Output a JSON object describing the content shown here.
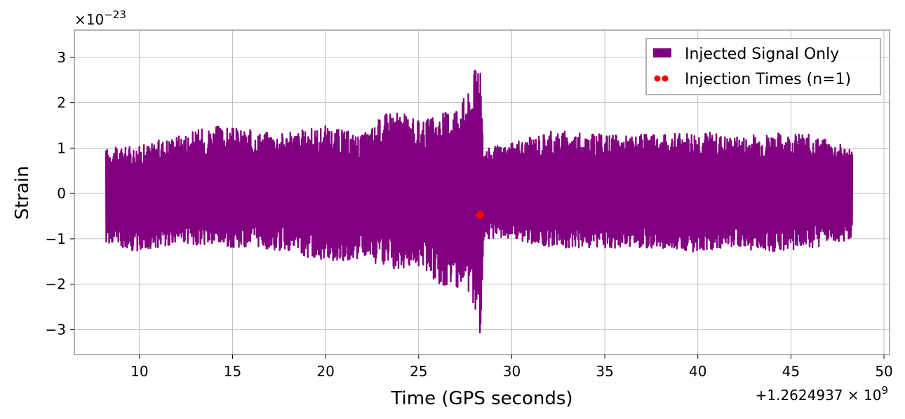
{
  "chart_data": {
    "type": "line",
    "xlabel": "Time (GPS seconds)",
    "ylabel": "Strain",
    "x_offset_label": "+1.2624937 × 10",
    "x_offset_exponent": "9",
    "y_multiplier_label": "×10",
    "y_multiplier_exponent": "−23",
    "xlim": [
      6.5,
      50.3
    ],
    "ylim": [
      -3.55,
      3.6
    ],
    "x_ticks": [
      10,
      15,
      20,
      25,
      30,
      35,
      40,
      45,
      50
    ],
    "x_tick_labels": [
      "10",
      "15",
      "20",
      "25",
      "30",
      "35",
      "40",
      "45",
      "50"
    ],
    "y_ticks": [
      -3,
      -2,
      -1,
      0,
      1,
      2,
      3
    ],
    "y_tick_labels": [
      "−3",
      "−2",
      "−1",
      "0",
      "1",
      "2",
      "3"
    ],
    "grid": true,
    "legend_position": "top-right",
    "series": [
      {
        "name": "Injected Signal Only",
        "color": "#800080",
        "kind": "strain-timeseries",
        "x": [
          8.2,
          10,
          12,
          14,
          16,
          18,
          20,
          22,
          23.5,
          25,
          26,
          27,
          27.8,
          28.2,
          28.3,
          28.5,
          30,
          32,
          35,
          38,
          40,
          42,
          44,
          46,
          48.3
        ],
        "y_max": [
          1.0,
          1.05,
          1.3,
          1.5,
          1.4,
          1.35,
          1.5,
          1.3,
          1.9,
          1.6,
          1.7,
          2.0,
          2.3,
          3.25,
          3.25,
          1.0,
          1.1,
          1.4,
          1.3,
          1.3,
          1.4,
          1.25,
          1.35,
          1.3,
          1.0
        ],
        "y_min": [
          -1.1,
          -1.3,
          -1.1,
          -1.2,
          -1.2,
          -1.3,
          -1.5,
          -1.45,
          -1.7,
          -1.6,
          -2.0,
          -2.1,
          -2.3,
          -3.25,
          -3.25,
          -1.0,
          -1.0,
          -1.2,
          -1.2,
          -1.2,
          -1.3,
          -1.2,
          -1.3,
          -1.2,
          -1.05
        ]
      },
      {
        "name": "Injection Times (n=1)",
        "color": "#ff0000",
        "kind": "marker",
        "points": [
          {
            "x": 28.3,
            "y": -0.47
          }
        ]
      }
    ]
  }
}
